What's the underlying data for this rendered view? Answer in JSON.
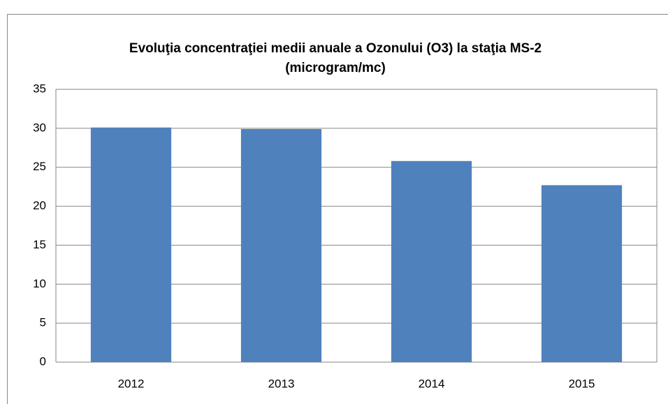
{
  "chart_data": {
    "type": "bar",
    "title": "Evoluţia concentraţiei medii anuale a Ozonului (O3) la staţia MS-2 (microgram/mc)",
    "categories": [
      "2012",
      "2013",
      "2014",
      "2015"
    ],
    "values": [
      30.1,
      29.9,
      25.8,
      22.7
    ],
    "color": "#4f81bd",
    "ylim": [
      0,
      35
    ],
    "yticks": [
      0,
      5,
      10,
      15,
      20,
      25,
      30,
      35
    ],
    "grid": true
  }
}
